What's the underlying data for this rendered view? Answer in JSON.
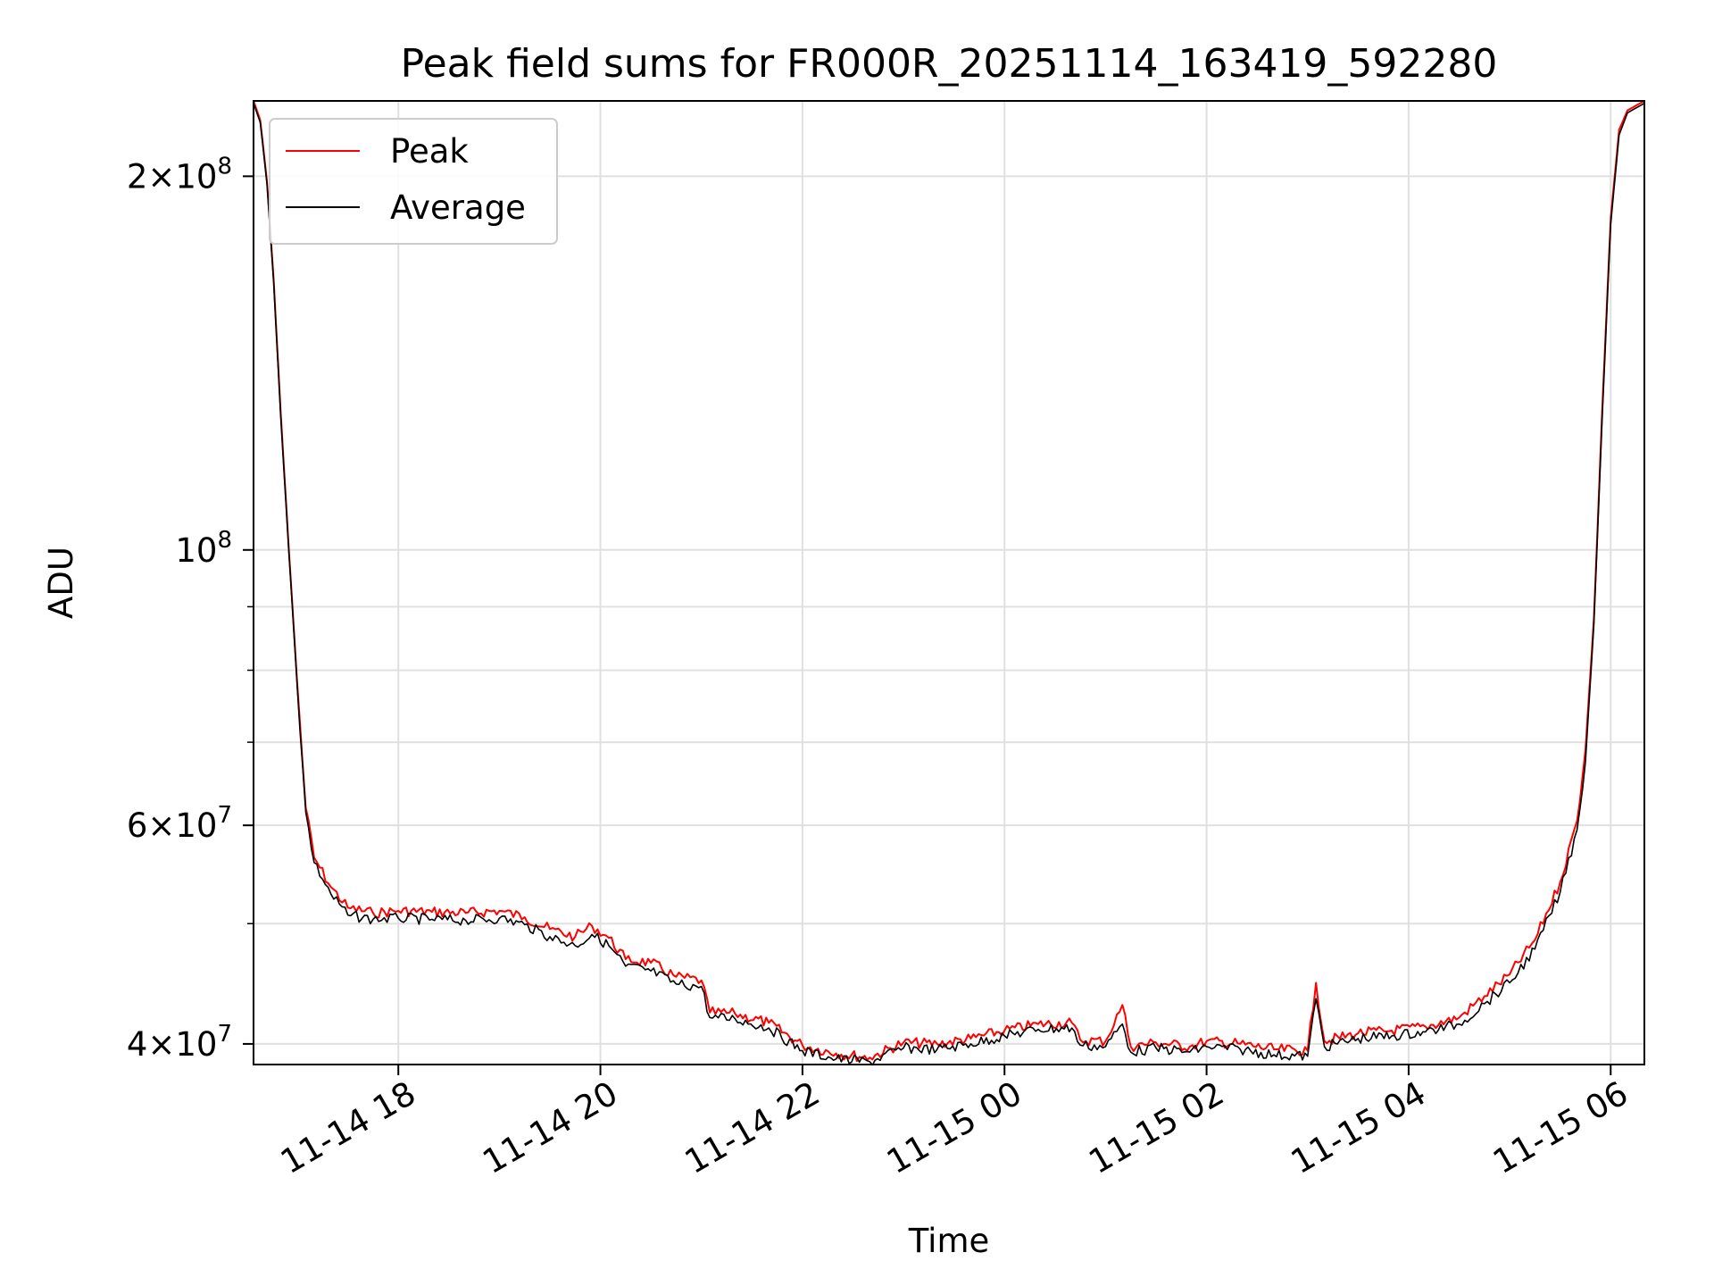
{
  "chart_data": {
    "type": "line",
    "title": "Peak field sums for FR000R_20251114_163419_592280",
    "xlabel": "Time",
    "ylabel": "ADU",
    "yscale": "log",
    "grid": true,
    "legend_placement": "upper-left",
    "xlim": [
      "2025-11-14 16:34",
      "2025-11-15 06:20"
    ],
    "ylim": [
      38500000,
      230000000
    ],
    "x_ticks": [
      {
        "value": "2025-11-14 18:00",
        "label": "11-14 18"
      },
      {
        "value": "2025-11-14 20:00",
        "label": "11-14 20"
      },
      {
        "value": "2025-11-14 22:00",
        "label": "11-14 22"
      },
      {
        "value": "2025-11-15 00:00",
        "label": "11-15 00"
      },
      {
        "value": "2025-11-15 02:00",
        "label": "11-15 02"
      },
      {
        "value": "2025-11-15 04:00",
        "label": "11-15 04"
      },
      {
        "value": "2025-11-15 06:00",
        "label": "11-15 06"
      }
    ],
    "y_ticks": [
      {
        "value": 40000000,
        "mantissa": "4",
        "exp": "7"
      },
      {
        "value": 60000000,
        "mantissa": "6",
        "exp": "7"
      },
      {
        "value": 100000000,
        "mantissa": "",
        "exp": "8"
      },
      {
        "value": 200000000,
        "mantissa": "2",
        "exp": "8"
      }
    ],
    "y_minor_ticks": [
      50000000,
      70000000,
      80000000,
      90000000
    ],
    "series": [
      {
        "name": "Peak",
        "color": "#ff0000",
        "points": [
          [
            "2025-11-14 16:34",
            230000000
          ],
          [
            "2025-11-14 16:38",
            222000000
          ],
          [
            "2025-11-14 16:42",
            198000000
          ],
          [
            "2025-11-14 16:46",
            165000000
          ],
          [
            "2025-11-14 16:50",
            130000000
          ],
          [
            "2025-11-14 16:55",
            100000000
          ],
          [
            "2025-11-14 17:00",
            78000000
          ],
          [
            "2025-11-14 17:05",
            62000000
          ],
          [
            "2025-11-14 17:10",
            56500000
          ],
          [
            "2025-11-14 17:20",
            53500000
          ],
          [
            "2025-11-14 17:30",
            51500000
          ],
          [
            "2025-11-14 17:45",
            51000000
          ],
          [
            "2025-11-14 18:00",
            51200000
          ],
          [
            "2025-11-14 18:20",
            51100000
          ],
          [
            "2025-11-14 18:40",
            51000000
          ],
          [
            "2025-11-14 19:00",
            51200000
          ],
          [
            "2025-11-14 19:15",
            50600000
          ],
          [
            "2025-11-14 19:30",
            49500000
          ],
          [
            "2025-11-14 19:45",
            48800000
          ],
          [
            "2025-11-14 19:55",
            49800000
          ],
          [
            "2025-11-14 20:05",
            48700000
          ],
          [
            "2025-11-14 20:15",
            46800000
          ],
          [
            "2025-11-14 20:30",
            46500000
          ],
          [
            "2025-11-14 20:45",
            45300000
          ],
          [
            "2025-11-14 21:00",
            45000000
          ],
          [
            "2025-11-14 21:05",
            42400000
          ],
          [
            "2025-11-14 21:20",
            42300000
          ],
          [
            "2025-11-14 21:40",
            41600000
          ],
          [
            "2025-11-14 22:00",
            39900000
          ],
          [
            "2025-11-14 22:20",
            39300000
          ],
          [
            "2025-11-14 22:40",
            39000000
          ],
          [
            "2025-11-14 23:00",
            40100000
          ],
          [
            "2025-11-14 23:20",
            40000000
          ],
          [
            "2025-11-14 23:40",
            40400000
          ],
          [
            "2025-11-15 00:00",
            41000000
          ],
          [
            "2025-11-15 00:20",
            41500000
          ],
          [
            "2025-11-15 00:40",
            41600000
          ],
          [
            "2025-11-15 00:45",
            40300000
          ],
          [
            "2025-11-15 01:00",
            40200000
          ],
          [
            "2025-11-15 01:10",
            43000000
          ],
          [
            "2025-11-15 01:15",
            39800000
          ],
          [
            "2025-11-15 01:30",
            40100000
          ],
          [
            "2025-11-15 01:50",
            39800000
          ],
          [
            "2025-11-15 02:00",
            40200000
          ],
          [
            "2025-11-15 02:20",
            40000000
          ],
          [
            "2025-11-15 02:40",
            39600000
          ],
          [
            "2025-11-15 03:00",
            39500000
          ],
          [
            "2025-11-15 03:05",
            44800000
          ],
          [
            "2025-11-15 03:10",
            40200000
          ],
          [
            "2025-11-15 03:30",
            40800000
          ],
          [
            "2025-11-15 03:50",
            41000000
          ],
          [
            "2025-11-15 04:10",
            41300000
          ],
          [
            "2025-11-15 04:30",
            42000000
          ],
          [
            "2025-11-15 04:45",
            43700000
          ],
          [
            "2025-11-15 05:00",
            45500000
          ],
          [
            "2025-11-15 05:15",
            48500000
          ],
          [
            "2025-11-15 05:30",
            54000000
          ],
          [
            "2025-11-15 05:40",
            60500000
          ],
          [
            "2025-11-15 05:45",
            69000000
          ],
          [
            "2025-11-15 05:50",
            88000000
          ],
          [
            "2025-11-15 05:55",
            130000000
          ],
          [
            "2025-11-15 06:00",
            185000000
          ],
          [
            "2025-11-15 06:05",
            218000000
          ],
          [
            "2025-11-15 06:10",
            226000000
          ],
          [
            "2025-11-15 06:20",
            230000000
          ]
        ]
      },
      {
        "name": "Average",
        "color": "#000000",
        "points": [
          [
            "2025-11-14 16:34",
            229000000
          ],
          [
            "2025-11-14 16:38",
            221000000
          ],
          [
            "2025-11-14 16:42",
            197000000
          ],
          [
            "2025-11-14 16:46",
            164000000
          ],
          [
            "2025-11-14 16:50",
            129000000
          ],
          [
            "2025-11-14 16:55",
            99500000
          ],
          [
            "2025-11-14 17:00",
            77500000
          ],
          [
            "2025-11-14 17:05",
            61500000
          ],
          [
            "2025-11-14 17:10",
            56000000
          ],
          [
            "2025-11-14 17:20",
            52800000
          ],
          [
            "2025-11-14 17:30",
            50800000
          ],
          [
            "2025-11-14 17:45",
            50400000
          ],
          [
            "2025-11-14 18:00",
            50500000
          ],
          [
            "2025-11-14 18:20",
            50400000
          ],
          [
            "2025-11-14 18:40",
            50300000
          ],
          [
            "2025-11-14 19:00",
            50500000
          ],
          [
            "2025-11-14 19:15",
            49900000
          ],
          [
            "2025-11-14 19:30",
            48800000
          ],
          [
            "2025-11-14 19:45",
            48000000
          ],
          [
            "2025-11-14 19:55",
            49000000
          ],
          [
            "2025-11-14 20:05",
            48000000
          ],
          [
            "2025-11-14 20:15",
            46200000
          ],
          [
            "2025-11-14 20:30",
            45800000
          ],
          [
            "2025-11-14 20:45",
            44700000
          ],
          [
            "2025-11-14 21:00",
            44500000
          ],
          [
            "2025-11-14 21:05",
            42000000
          ],
          [
            "2025-11-14 21:20",
            41900000
          ],
          [
            "2025-11-14 21:40",
            41200000
          ],
          [
            "2025-11-14 22:00",
            39500000
          ],
          [
            "2025-11-14 22:20",
            38900000
          ],
          [
            "2025-11-14 22:40",
            38700000
          ],
          [
            "2025-11-14 23:00",
            39700000
          ],
          [
            "2025-11-14 23:20",
            39600000
          ],
          [
            "2025-11-14 23:40",
            40000000
          ],
          [
            "2025-11-15 00:00",
            40600000
          ],
          [
            "2025-11-15 00:20",
            41100000
          ],
          [
            "2025-11-15 00:40",
            41200000
          ],
          [
            "2025-11-15 00:45",
            39900000
          ],
          [
            "2025-11-15 01:00",
            39800000
          ],
          [
            "2025-11-15 01:10",
            41500000
          ],
          [
            "2025-11-15 01:15",
            39400000
          ],
          [
            "2025-11-15 01:30",
            39700000
          ],
          [
            "2025-11-15 01:50",
            39400000
          ],
          [
            "2025-11-15 02:00",
            39800000
          ],
          [
            "2025-11-15 02:20",
            39600000
          ],
          [
            "2025-11-15 02:40",
            39200000
          ],
          [
            "2025-11-15 03:00",
            39100000
          ],
          [
            "2025-11-15 03:05",
            43500000
          ],
          [
            "2025-11-15 03:10",
            39800000
          ],
          [
            "2025-11-15 03:30",
            40400000
          ],
          [
            "2025-11-15 03:50",
            40600000
          ],
          [
            "2025-11-15 04:10",
            40900000
          ],
          [
            "2025-11-15 04:30",
            41500000
          ],
          [
            "2025-11-15 04:45",
            43100000
          ],
          [
            "2025-11-15 05:00",
            44800000
          ],
          [
            "2025-11-15 05:15",
            47700000
          ],
          [
            "2025-11-15 05:30",
            53000000
          ],
          [
            "2025-11-15 05:40",
            59500000
          ],
          [
            "2025-11-15 05:45",
            67500000
          ],
          [
            "2025-11-15 05:50",
            87000000
          ],
          [
            "2025-11-15 05:55",
            128000000
          ],
          [
            "2025-11-15 06:00",
            183000000
          ],
          [
            "2025-11-15 06:05",
            216000000
          ],
          [
            "2025-11-15 06:10",
            225000000
          ],
          [
            "2025-11-15 06:20",
            229000000
          ]
        ]
      }
    ]
  }
}
